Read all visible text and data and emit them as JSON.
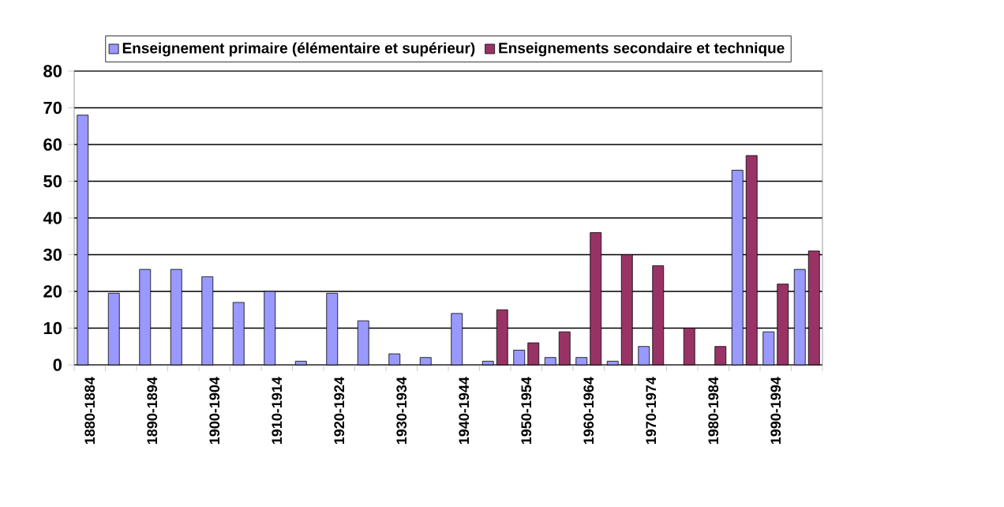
{
  "chart_data": {
    "type": "bar",
    "categories": [
      "1880-1884",
      null,
      "1890-1894",
      null,
      "1900-1904",
      null,
      "1910-1914",
      null,
      "1920-1924",
      null,
      "1930-1934",
      null,
      "1940-1944",
      null,
      "1950-1954",
      null,
      "1960-1964",
      null,
      "1970-1974",
      null,
      "1980-1984",
      null,
      "1990-1994",
      null
    ],
    "series": [
      {
        "name": "Enseignement primaire (élémentaire et supérieur)",
        "color": "#9999ff",
        "values": [
          68,
          19.5,
          26,
          26,
          24,
          17,
          20,
          1,
          19.5,
          12,
          3,
          2,
          14,
          1,
          4,
          2,
          2,
          1,
          5,
          null,
          null,
          53,
          9,
          26
        ]
      },
      {
        "name": "Enseignements secondaire et technique",
        "color": "#993366",
        "values": [
          null,
          null,
          null,
          null,
          null,
          null,
          null,
          null,
          null,
          null,
          null,
          null,
          null,
          15,
          6,
          9,
          36,
          30,
          27,
          10,
          5,
          57,
          22,
          31
        ]
      }
    ],
    "ylim": [
      0,
      80
    ],
    "yticks": [
      0,
      10,
      20,
      30,
      40,
      50,
      60,
      70,
      80
    ],
    "grid": "y",
    "legend": "top"
  }
}
